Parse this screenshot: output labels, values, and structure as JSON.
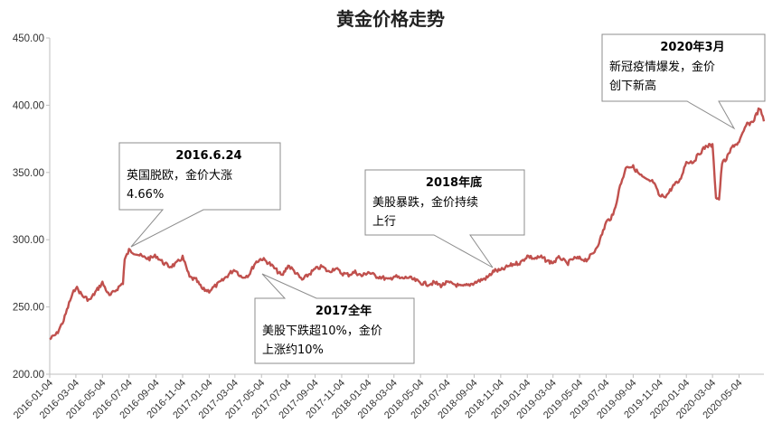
{
  "chart_data": {
    "type": "line",
    "title": "黄金价格走势",
    "xlabel": "",
    "ylabel": "",
    "ylim": [
      200,
      450
    ],
    "y_ticks": [
      "200.00",
      "250.00",
      "300.00",
      "350.00",
      "400.00",
      "450.00"
    ],
    "x_range": [
      "2016-01-04",
      "2020-06-30"
    ],
    "x_ticks": [
      "2016-01-04",
      "2016-03-04",
      "2016-05-04",
      "2016-07-04",
      "2016-09-04",
      "2016-11-04",
      "2017-01-04",
      "2017-03-04",
      "2017-05-04",
      "2017-07-04",
      "2017-09-04",
      "2017-11-04",
      "2018-01-04",
      "2018-03-04",
      "2018-05-04",
      "2018-07-04",
      "2018-09-04",
      "2018-11-04",
      "2019-01-04",
      "2019-03-04",
      "2019-05-04",
      "2019-07-04",
      "2019-09-04",
      "2019-11-04",
      "2020-01-04",
      "2020-03-04",
      "2020-05-04"
    ],
    "grid": false,
    "line_color": "#c0504d",
    "series": [
      {
        "name": "",
        "x": [
          "2016-01-04",
          "2016-01-20",
          "2016-02-05",
          "2016-02-20",
          "2016-03-04",
          "2016-03-20",
          "2016-04-05",
          "2016-04-20",
          "2016-05-04",
          "2016-05-20",
          "2016-06-05",
          "2016-06-20",
          "2016-06-24",
          "2016-07-04",
          "2016-07-20",
          "2016-08-05",
          "2016-08-20",
          "2016-09-04",
          "2016-09-20",
          "2016-10-05",
          "2016-10-20",
          "2016-11-04",
          "2016-11-20",
          "2016-12-05",
          "2016-12-20",
          "2017-01-04",
          "2017-01-20",
          "2017-02-05",
          "2017-02-20",
          "2017-03-04",
          "2017-03-20",
          "2017-04-05",
          "2017-04-20",
          "2017-05-04",
          "2017-05-20",
          "2017-06-05",
          "2017-06-20",
          "2017-07-04",
          "2017-07-20",
          "2017-08-05",
          "2017-08-20",
          "2017-09-04",
          "2017-09-20",
          "2017-10-05",
          "2017-10-20",
          "2017-11-04",
          "2017-11-20",
          "2017-12-05",
          "2017-12-20",
          "2018-01-04",
          "2018-01-20",
          "2018-02-05",
          "2018-02-20",
          "2018-03-04",
          "2018-03-20",
          "2018-04-05",
          "2018-04-20",
          "2018-05-04",
          "2018-05-20",
          "2018-06-05",
          "2018-06-20",
          "2018-07-04",
          "2018-07-20",
          "2018-08-05",
          "2018-08-20",
          "2018-09-04",
          "2018-09-20",
          "2018-10-05",
          "2018-10-20",
          "2018-11-04",
          "2018-11-20",
          "2018-12-05",
          "2018-12-20",
          "2019-01-04",
          "2019-01-20",
          "2019-02-05",
          "2019-02-20",
          "2019-03-04",
          "2019-03-20",
          "2019-04-05",
          "2019-04-20",
          "2019-05-04",
          "2019-05-20",
          "2019-06-05",
          "2019-06-20",
          "2019-07-04",
          "2019-07-20",
          "2019-08-05",
          "2019-08-20",
          "2019-09-04",
          "2019-09-20",
          "2019-10-05",
          "2019-10-20",
          "2019-11-04",
          "2019-11-20",
          "2019-12-05",
          "2019-12-20",
          "2020-01-04",
          "2020-01-20",
          "2020-02-05",
          "2020-02-20",
          "2020-03-04",
          "2020-03-12",
          "2020-03-19",
          "2020-03-26",
          "2020-04-05",
          "2020-04-20",
          "2020-05-04",
          "2020-05-20",
          "2020-06-05",
          "2020-06-20",
          "2020-06-30"
        ],
        "values": [
          226,
          230,
          240,
          255,
          265,
          258,
          255,
          262,
          268,
          258,
          263,
          268,
          285,
          292,
          290,
          287,
          286,
          288,
          283,
          280,
          282,
          287,
          272,
          270,
          263,
          262,
          266,
          270,
          275,
          278,
          272,
          274,
          283,
          286,
          283,
          278,
          273,
          281,
          276,
          270,
          274,
          278,
          280,
          276,
          279,
          275,
          274,
          276,
          273,
          276,
          273,
          272,
          270,
          273,
          271,
          272,
          270,
          268,
          267,
          268,
          266,
          268,
          267,
          265,
          266,
          268,
          270,
          272,
          277,
          277,
          280,
          282,
          283,
          288,
          286,
          287,
          284,
          283,
          287,
          282,
          286,
          286,
          285,
          290,
          300,
          313,
          318,
          340,
          355,
          354,
          348,
          344,
          343,
          332,
          333,
          340,
          344,
          358,
          358,
          365,
          370,
          370,
          332,
          330,
          357,
          360,
          370,
          372,
          385,
          388,
          398,
          388
        ]
      }
    ],
    "annotations": [
      {
        "heading": "2016.6.24",
        "lines": [
          "英国脱欧，金价大涨",
          "4.66%"
        ],
        "at": "2016-06-24"
      },
      {
        "heading": "2017全年",
        "lines": [
          "美股下跌超10%，金价",
          "上涨约10%"
        ],
        "at": "2017-07-04"
      },
      {
        "heading": "2018年底",
        "lines": [
          "美股暴跌，金价持续",
          "上行"
        ],
        "at": "2018-09-04"
      },
      {
        "heading": "2020年3月",
        "lines": [
          "新冠疫情爆发，金价",
          "创下新高"
        ],
        "at": "2020-02-25"
      }
    ]
  }
}
